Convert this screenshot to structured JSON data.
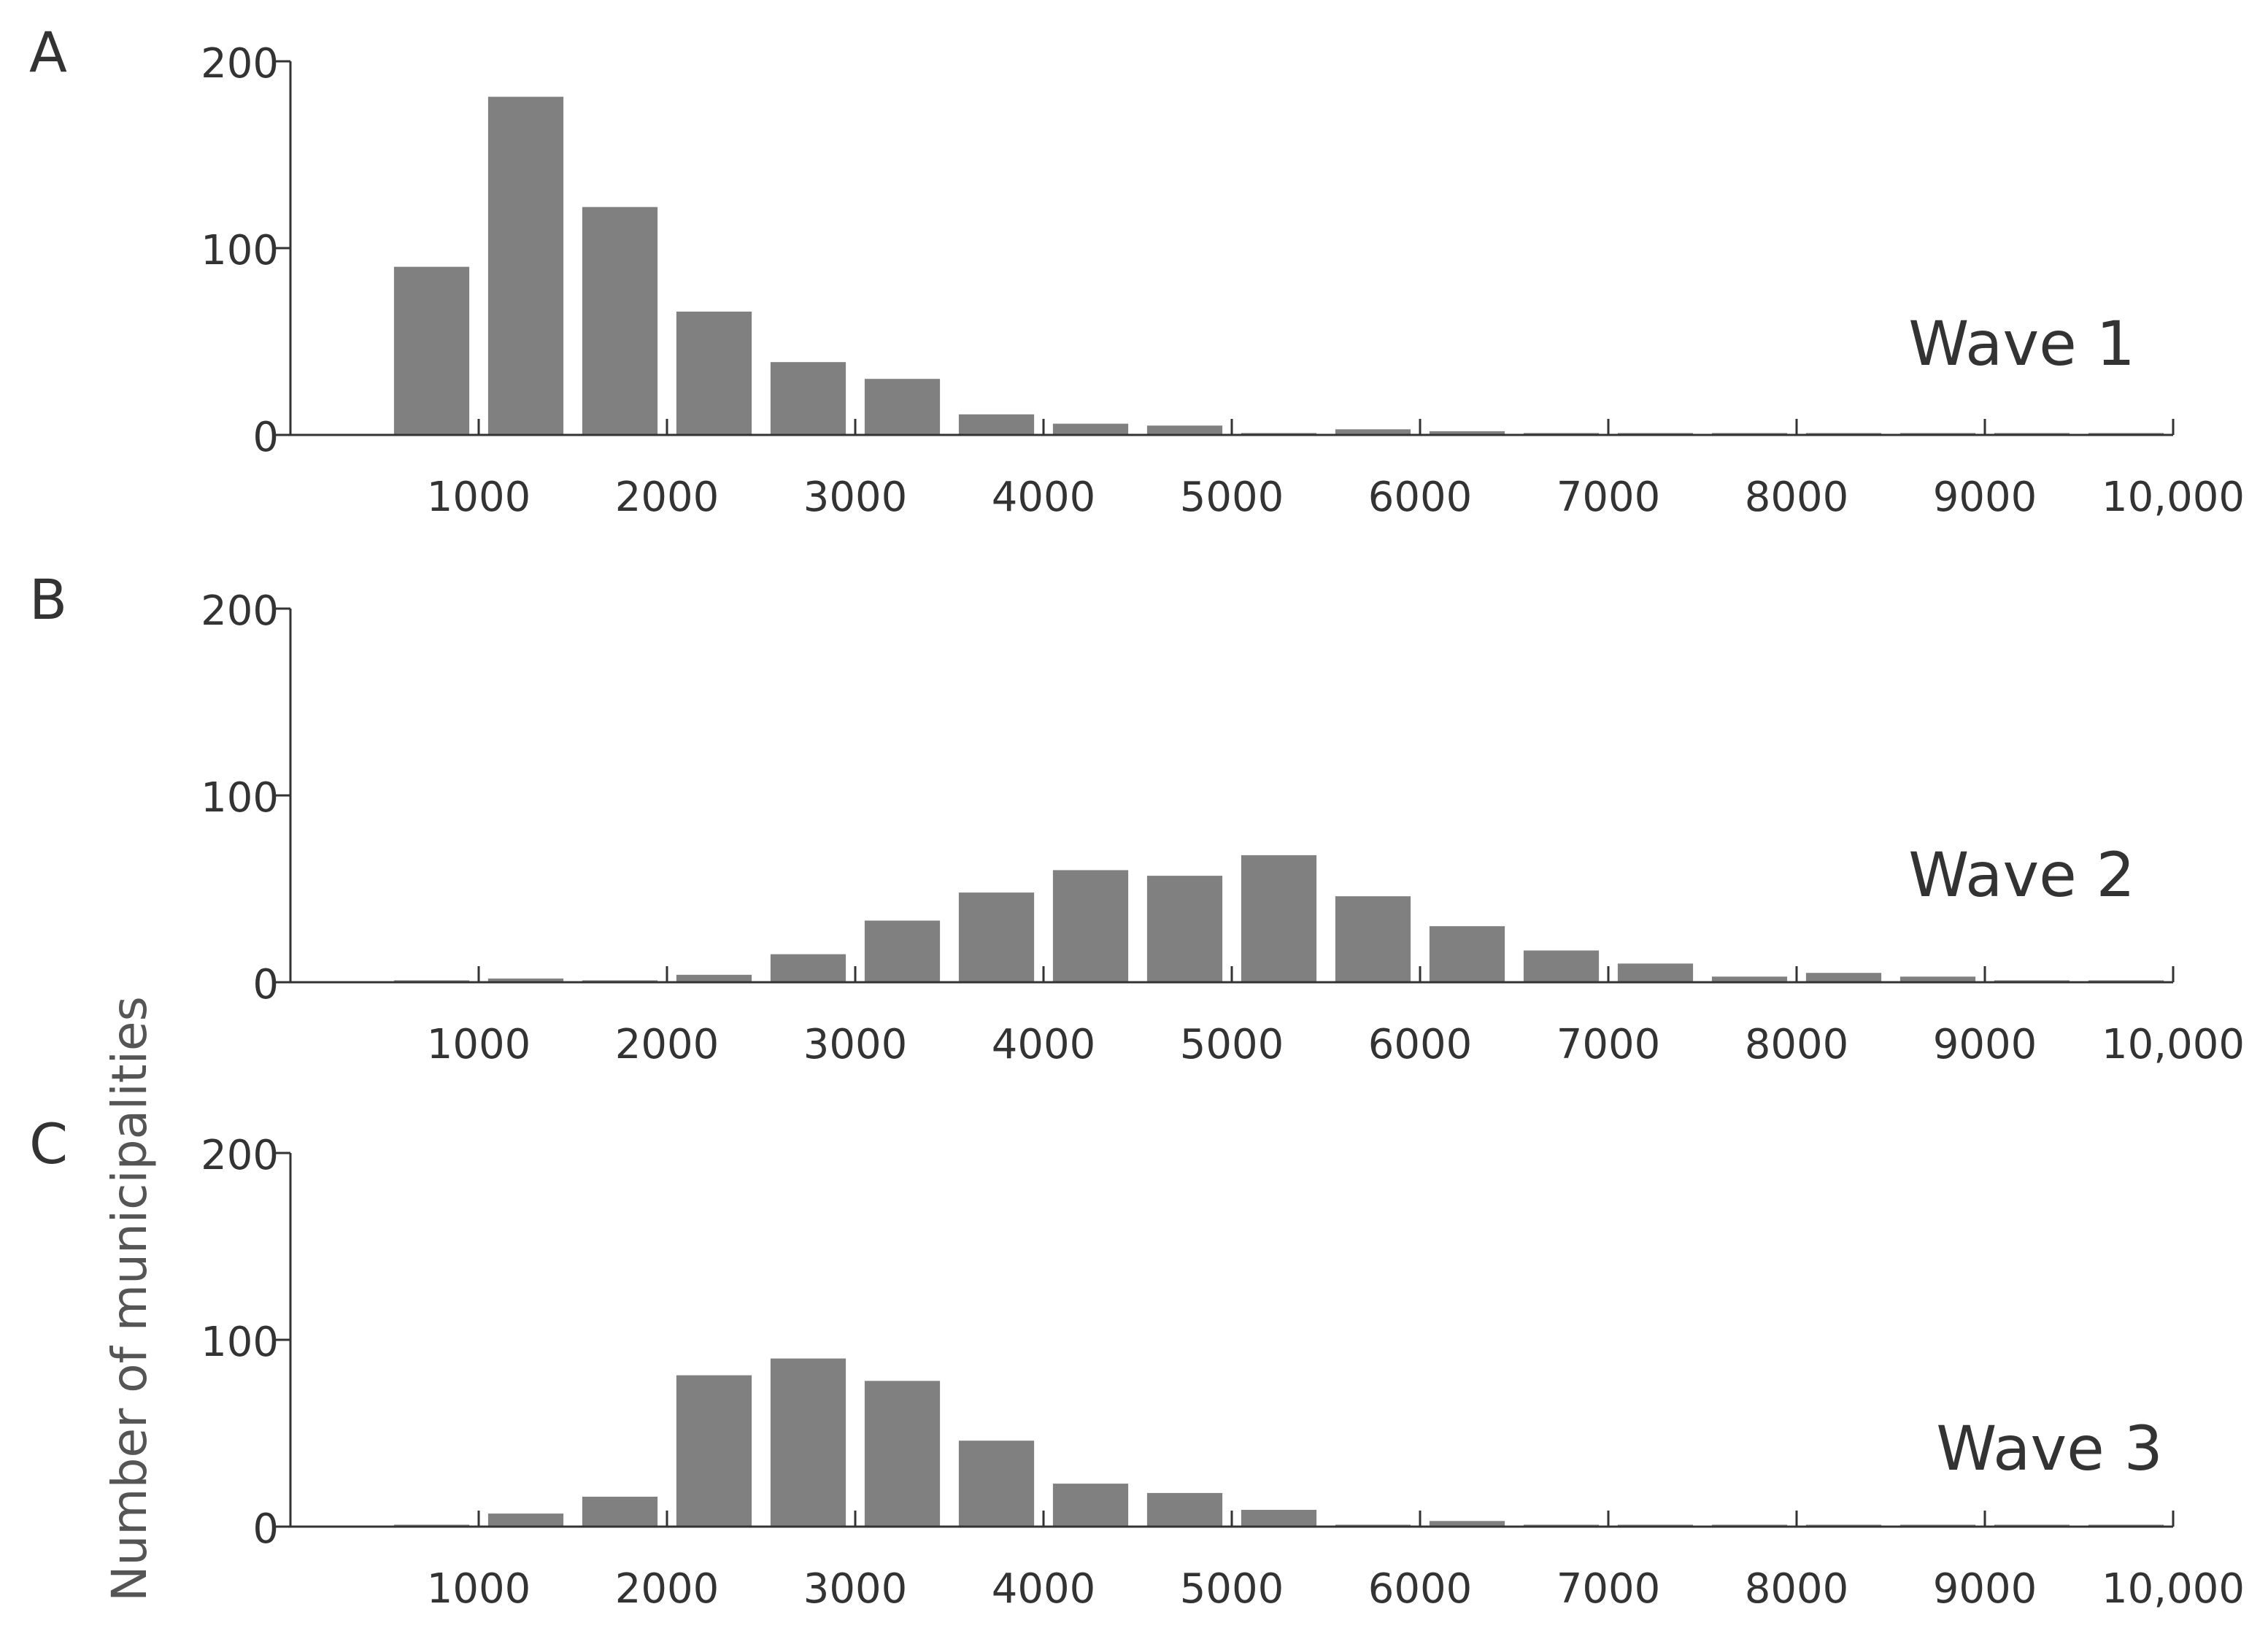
{
  "chart_data": [
    {
      "type": "bar",
      "panel_label": "A",
      "annotation": "Wave 1",
      "x": [
        750,
        1250,
        1750,
        2250,
        2750,
        3250,
        3750,
        4250,
        4750,
        5250,
        5750,
        6250,
        6750,
        7250,
        7750,
        8250,
        8750,
        9250,
        9750
      ],
      "values": [
        90,
        181,
        122,
        66,
        39,
        30,
        11,
        6,
        5,
        1,
        3,
        2,
        1,
        1,
        1,
        1,
        1,
        1,
        1
      ],
      "xticks": [
        1000,
        2000,
        3000,
        4000,
        5000,
        6000,
        7000,
        8000,
        9000,
        10000
      ],
      "xticklabels": [
        "1000",
        "2000",
        "3000",
        "4000",
        "5000",
        "6000",
        "7000",
        "8000",
        "9000",
        "10,000"
      ],
      "yticks": [
        0,
        100,
        200
      ],
      "yticklabels": [
        "0",
        "100",
        "200"
      ],
      "xlim": [
        0,
        10000
      ],
      "ylim": [
        0,
        200
      ]
    },
    {
      "type": "bar",
      "panel_label": "B",
      "annotation": "Wave 2",
      "x": [
        750,
        1250,
        1750,
        2250,
        2750,
        3250,
        3750,
        4250,
        4750,
        5250,
        5750,
        6250,
        6750,
        7250,
        7750,
        8250,
        8750,
        9250,
        9750
      ],
      "values": [
        1,
        2,
        1,
        4,
        15,
        33,
        48,
        60,
        57,
        68,
        46,
        30,
        17,
        10,
        3,
        5,
        3,
        1,
        1
      ],
      "xticks": [
        1000,
        2000,
        3000,
        4000,
        5000,
        6000,
        7000,
        8000,
        9000,
        10000
      ],
      "xticklabels": [
        "1000",
        "2000",
        "3000",
        "4000",
        "5000",
        "6000",
        "7000",
        "8000",
        "9000",
        "10,000"
      ],
      "yticks": [
        0,
        100,
        200
      ],
      "yticklabels": [
        "0",
        "100",
        "200"
      ],
      "xlim": [
        0,
        10000
      ],
      "ylim": [
        0,
        200
      ]
    },
    {
      "type": "bar",
      "panel_label": "C",
      "annotation": "Wave 3",
      "x": [
        750,
        1250,
        1750,
        2250,
        2750,
        3250,
        3750,
        4250,
        4750,
        5250,
        5750,
        6250,
        6750,
        7250,
        7750,
        8250,
        8750,
        9250,
        9750
      ],
      "values": [
        1,
        7,
        16,
        81,
        90,
        78,
        46,
        23,
        18,
        9,
        1,
        3,
        1,
        1,
        1,
        1,
        1,
        1,
        1
      ],
      "xticks": [
        1000,
        2000,
        3000,
        4000,
        5000,
        6000,
        7000,
        8000,
        9000,
        10000
      ],
      "xticklabels": [
        "1000",
        "2000",
        "3000",
        "4000",
        "5000",
        "6000",
        "7000",
        "8000",
        "9000",
        "10,000"
      ],
      "yticks": [
        0,
        100,
        200
      ],
      "yticklabels": [
        "0",
        "100",
        "200"
      ],
      "xlim": [
        0,
        10000
      ],
      "ylim": [
        0,
        200
      ]
    }
  ],
  "ylabel": "Number of municipalities",
  "bar_color": "#808080",
  "axis_color": "#333333"
}
